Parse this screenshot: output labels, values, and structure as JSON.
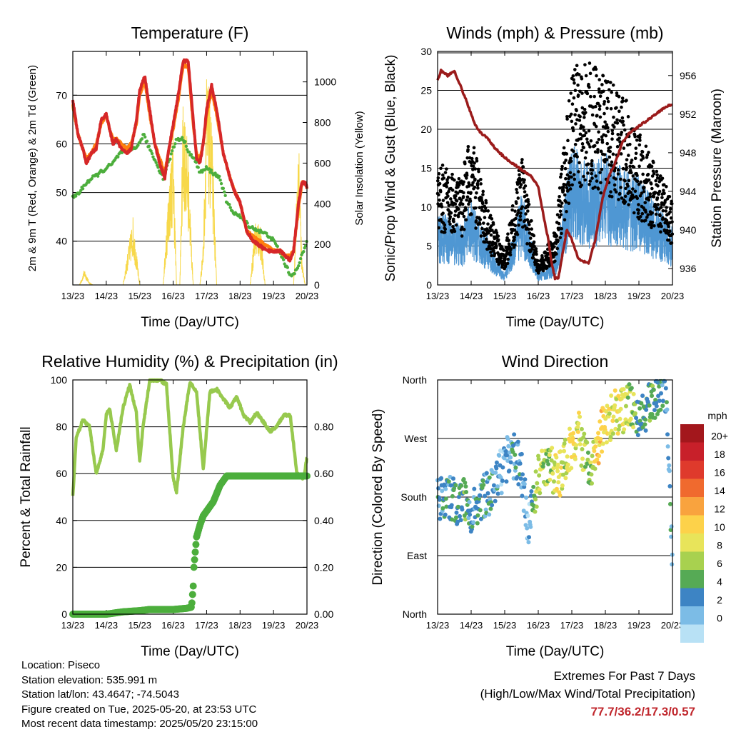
{
  "meta": {
    "location": "Location: Piseco",
    "elevation": "Station elevation: 535.991 m",
    "latlon": "Station lat/lon: 43.4647; -74.5043",
    "created": "Figure created on Tue, 2025-05-20, at 23:53 UTC",
    "recent": "Most recent data timestamp: 2025/05/20 23:15:00"
  },
  "extremes": {
    "line1": "Extremes For Past 7 Days",
    "line2": "(High/Low/Max Wind/Total Precipitation)",
    "values": "77.7/36.2/17.3/0.57"
  },
  "colors": {
    "temp_red": "#d62728",
    "temp_orange": "#ff7f0e",
    "dewpoint_green": "#4cae3c",
    "solar_yellow": "#f7d84a",
    "gust_black": "#000000",
    "wind_blue": "#4f97d3",
    "pressure_maroon": "#9b1b1b",
    "rh_lightgreen": "#97c94e",
    "precip_green": "#4cae3c"
  },
  "chart_data": [
    {
      "type": "line",
      "title": "Temperature (F)",
      "xlabel": "Time (Day/UTC)",
      "ylabel": "2m & 9m T (Red, Orange) & 2m Td (Green)",
      "y2label": "Solar Insolation (Yellow)",
      "x_ticks": [
        "13/23",
        "14/23",
        "15/23",
        "16/23",
        "17/23",
        "18/23",
        "19/23",
        "20/23"
      ],
      "x_unit": "days since 13/23",
      "xlim": [
        0,
        7
      ],
      "ylim": [
        31,
        79
      ],
      "y_ticks": [
        40,
        50,
        60,
        70
      ],
      "y2lim": [
        0,
        1150
      ],
      "y2_ticks": [
        0,
        200,
        400,
        600,
        800,
        1000
      ],
      "grid": true,
      "series": [
        {
          "name": "2m T",
          "color": "#d62728",
          "x": [
            0,
            0.15,
            0.3,
            0.4,
            0.55,
            0.7,
            0.85,
            1.0,
            1.1,
            1.2,
            1.3,
            1.45,
            1.6,
            1.75,
            1.9,
            2.0,
            2.15,
            2.3,
            2.45,
            2.6,
            2.75,
            2.85,
            3.0,
            3.15,
            3.3,
            3.45,
            3.6,
            3.7,
            3.8,
            3.9,
            4.0,
            4.15,
            4.3,
            4.5,
            4.7,
            4.85,
            5.0,
            5.2,
            5.4,
            5.6,
            5.8,
            6.0,
            6.2,
            6.35,
            6.5,
            6.6,
            6.75,
            6.85,
            6.95,
            7.0
          ],
          "values": [
            69,
            62,
            59,
            56,
            58,
            59,
            65,
            66,
            63,
            60,
            61,
            59,
            58,
            59,
            65,
            71,
            74,
            67,
            60,
            56,
            53,
            58,
            64,
            70,
            77,
            77,
            65,
            57,
            56,
            60,
            67,
            72,
            67,
            58,
            53,
            50,
            48,
            42,
            40,
            39,
            38,
            38,
            38,
            37,
            36,
            38,
            48,
            52,
            52,
            51
          ]
        },
        {
          "name": "9m T",
          "color": "#ff7f0e",
          "x": [
            0,
            0.15,
            0.3,
            0.4,
            0.55,
            0.7,
            0.85,
            1.0,
            1.1,
            1.2,
            1.3,
            1.45,
            1.6,
            1.75,
            1.9,
            2.0,
            2.15,
            2.3,
            2.45,
            2.6,
            2.75,
            2.85,
            3.0,
            3.15,
            3.3,
            3.45,
            3.6,
            3.7,
            3.8,
            3.9,
            4.0,
            4.15,
            4.3,
            4.5,
            4.7,
            4.85,
            5.0,
            5.2,
            5.4,
            5.6,
            5.8,
            6.0,
            6.2,
            6.35,
            6.5,
            6.6,
            6.75,
            6.85,
            6.95,
            7.0
          ],
          "values": [
            68,
            62,
            59,
            57,
            58,
            60,
            64,
            66,
            63,
            61,
            61,
            60,
            59,
            60,
            64,
            70,
            73,
            66,
            60,
            57,
            54,
            58,
            63,
            69,
            76,
            76,
            64,
            58,
            57,
            60,
            66,
            71,
            66,
            58,
            53,
            50,
            48,
            42,
            41,
            40,
            39,
            38,
            38,
            37,
            37,
            38,
            47,
            52,
            52,
            51
          ]
        },
        {
          "name": "2m Td",
          "color": "#4cae3c",
          "x": [
            0,
            0.2,
            0.4,
            0.6,
            0.8,
            1.0,
            1.2,
            1.4,
            1.6,
            1.8,
            2.0,
            2.1,
            2.3,
            2.5,
            2.7,
            2.9,
            3.1,
            3.3,
            3.5,
            3.7,
            3.8,
            4.0,
            4.2,
            4.4,
            4.6,
            4.8,
            5.0,
            5.3,
            5.6,
            5.9,
            6.1,
            6.3,
            6.5,
            6.7,
            6.9,
            7.0
          ],
          "values": [
            49,
            50,
            52,
            53,
            54,
            55,
            56,
            58,
            59,
            59,
            60,
            62,
            59,
            56,
            53,
            57,
            61,
            61,
            58,
            56,
            54,
            55,
            54,
            53,
            48,
            46,
            45,
            43,
            42,
            41,
            39,
            36,
            33,
            34,
            38,
            40
          ]
        },
        {
          "name": "Solar",
          "axis": "y2",
          "color": "#f7d84a",
          "x": [
            0.2,
            0.35,
            0.5,
            0.6,
            0.75,
            0.9,
            1.0,
            1.2,
            1.35,
            1.5,
            1.65,
            1.8,
            2.0,
            2.2,
            2.35,
            2.5,
            2.7,
            2.85,
            3.0,
            3.1,
            3.2,
            3.3,
            3.45,
            3.6,
            3.7,
            3.8,
            3.9,
            4.0,
            4.15,
            4.3,
            4.45,
            4.6,
            4.9,
            5.1,
            5.3,
            5.45,
            5.6,
            5.75,
            5.9,
            6.1,
            6.3,
            6.45,
            6.6,
            6.75,
            6.85,
            6.95
          ],
          "values": [
            0,
            80,
            10,
            0,
            0,
            0,
            0,
            0,
            0,
            0,
            180,
            340,
            0,
            0,
            0,
            0,
            0,
            450,
            760,
            0,
            0,
            970,
            650,
            0,
            0,
            0,
            220,
            1050,
            840,
            0,
            0,
            0,
            0,
            0,
            0,
            320,
            320,
            0,
            0,
            0,
            0,
            0,
            0,
            800,
            120,
            0
          ]
        }
      ]
    },
    {
      "type": "scatter",
      "title": "Winds (mph) & Pressure (mb)",
      "xlabel": "Time (Day/UTC)",
      "ylabel": "Sonic/Prop Wind & Gust (Blue, Black)",
      "y2label": "Station Pressure (Maroon)",
      "x_ticks": [
        "13/23",
        "14/23",
        "15/23",
        "16/23",
        "17/23",
        "18/23",
        "19/23",
        "20/23"
      ],
      "xlim": [
        0,
        7
      ],
      "ylim": [
        0,
        30
      ],
      "y_ticks": [
        0,
        5,
        10,
        15,
        20,
        25,
        30
      ],
      "y2lim": [
        934.3,
        958.5
      ],
      "y2_ticks": [
        936,
        940,
        944,
        948,
        952,
        956
      ],
      "grid": true,
      "series": [
        {
          "name": "Gust",
          "color": "#000000",
          "x": [
            0.2,
            0.7,
            1.0,
            1.5,
            2.0,
            2.5,
            3.0,
            3.5,
            4.0,
            4.5,
            5.0,
            5.5,
            6.0,
            6.5,
            7.0
          ],
          "values": [
            11,
            10,
            14,
            7,
            3,
            12,
            2,
            5,
            20,
            21,
            19,
            18,
            14,
            11,
            8
          ]
        },
        {
          "name": "Wind",
          "color": "#4f97d3",
          "x": [
            0.2,
            0.7,
            1.0,
            1.5,
            2.0,
            2.5,
            3.0,
            3.5,
            4.0,
            4.5,
            5.0,
            5.5,
            6.0,
            6.5,
            7.0
          ],
          "values": [
            6,
            5,
            7,
            4,
            1,
            8,
            1,
            2,
            12,
            10,
            11,
            10,
            9,
            7,
            5
          ]
        },
        {
          "name": "Pressure",
          "axis": "y2",
          "color": "#9b1b1b",
          "x": [
            0,
            0.1,
            0.3,
            0.5,
            0.9,
            1.1,
            1.3,
            1.5,
            1.7,
            2.0,
            2.2,
            2.4,
            2.6,
            2.8,
            3.0,
            3.1,
            3.3,
            3.4,
            3.5,
            3.6,
            3.75,
            3.85,
            4.0,
            4.2,
            4.5,
            4.7,
            4.9,
            5.1,
            5.3,
            5.5,
            5.7,
            5.9,
            6.1,
            6.3,
            6.5,
            6.7,
            6.8,
            7.0
          ],
          "values": [
            955.5,
            956.5,
            956,
            956.5,
            953,
            951,
            950,
            949.5,
            948.5,
            947.5,
            947,
            946.5,
            946,
            945.5,
            944.5,
            942.5,
            939,
            936.5,
            935,
            935,
            938,
            940,
            939,
            937,
            936.5,
            939,
            943,
            945.5,
            947,
            949,
            950,
            950.5,
            951,
            951.5,
            952,
            952.5,
            952.8,
            953
          ]
        }
      ]
    },
    {
      "type": "line",
      "title": "Relative Humidity (%) & Precipitation (in)",
      "xlabel": "Time (Day/UTC)",
      "ylabel": "Percent & Total Rainfall",
      "x_ticks": [
        "13/23",
        "14/23",
        "15/23",
        "16/23",
        "17/23",
        "18/23",
        "19/23",
        "20/23"
      ],
      "xlim": [
        0,
        7
      ],
      "ylim": [
        0,
        100
      ],
      "y_ticks": [
        0,
        20,
        40,
        60,
        80,
        100
      ],
      "y2lim": [
        0,
        1.0
      ],
      "y2_ticks": [
        "0.00",
        "0.20",
        "0.40",
        "0.60",
        "0.80"
      ],
      "grid": true,
      "series": [
        {
          "name": "RH",
          "color": "#97c94e",
          "x": [
            0,
            0.1,
            0.3,
            0.5,
            0.7,
            0.9,
            1.0,
            1.1,
            1.3,
            1.5,
            1.7,
            1.9,
            2.0,
            2.1,
            2.3,
            2.5,
            2.6,
            2.8,
            3.0,
            3.1,
            3.3,
            3.5,
            3.7,
            3.9,
            4.1,
            4.3,
            4.5,
            4.7,
            4.9,
            5.1,
            5.3,
            5.5,
            5.7,
            5.9,
            6.1,
            6.3,
            6.5,
            6.7,
            6.9,
            7.0
          ],
          "values": [
            50,
            75,
            83,
            80,
            60,
            70,
            85,
            88,
            70,
            88,
            98,
            86,
            65,
            80,
            100,
            100,
            100,
            98,
            58,
            52,
            80,
            99,
            95,
            62,
            95,
            96,
            92,
            88,
            93,
            85,
            82,
            86,
            82,
            78,
            80,
            85,
            85,
            60,
            58,
            67
          ]
        },
        {
          "name": "Precip",
          "axis": "y2",
          "color": "#4cae3c",
          "x": [
            0,
            1.0,
            1.5,
            2.0,
            2.3,
            2.6,
            3.0,
            3.4,
            3.55,
            3.6,
            3.62,
            3.7,
            3.8,
            3.9,
            4.0,
            4.2,
            4.4,
            4.6,
            5.0,
            5.5,
            6.0,
            6.5,
            7.0
          ],
          "values": [
            0,
            0,
            0.01,
            0.015,
            0.02,
            0.02,
            0.02,
            0.025,
            0.03,
            0.12,
            0.2,
            0.33,
            0.38,
            0.42,
            0.44,
            0.48,
            0.55,
            0.59,
            0.59,
            0.59,
            0.59,
            0.59,
            0.59
          ]
        }
      ]
    },
    {
      "type": "scatter",
      "title": "Wind Direction",
      "xlabel": "Time (Day/UTC)",
      "ylabel": "Direction (Colored By Speed)",
      "x_ticks": [
        "13/23",
        "14/23",
        "15/23",
        "16/23",
        "17/23",
        "18/23",
        "19/23",
        "20/23"
      ],
      "xlim": [
        0,
        7
      ],
      "y_ticks": [
        "North",
        "East",
        "South",
        "West",
        "North"
      ],
      "ylim": [
        0,
        360
      ],
      "grid": true,
      "colorbar": {
        "unit": "mph",
        "labels": [
          "20+",
          "18",
          "16",
          "14",
          "12",
          "10",
          "8",
          "6",
          "4",
          "2",
          "0"
        ],
        "colors": [
          "#a3171c",
          "#c8202a",
          "#df3a2c",
          "#f06a2e",
          "#f9a33e",
          "#fdd24a",
          "#e8e45a",
          "#a8d14f",
          "#56aa55",
          "#3d84c4",
          "#7cbce6",
          "#b8e1f5"
        ]
      },
      "series": [
        {
          "name": "Direction",
          "x": [
            0.1,
            0.3,
            0.6,
            0.8,
            1.0,
            1.2,
            1.5,
            1.8,
            2.0,
            2.2,
            2.5,
            2.7,
            3.0,
            3.3,
            3.6,
            3.8,
            4.0,
            4.2,
            4.5,
            4.8,
            5.0,
            5.3,
            5.6,
            5.8,
            6.0,
            6.3,
            6.6,
            6.8,
            7.0
          ],
          "values": [
            175,
            180,
            170,
            175,
            160,
            170,
            185,
            210,
            230,
            250,
            220,
            130,
            210,
            230,
            210,
            240,
            260,
            280,
            220,
            265,
            295,
            310,
            315,
            325,
            300,
            320,
            345,
            340,
            80
          ],
          "speed": [
            4,
            4,
            5,
            6,
            3,
            4,
            4,
            3,
            2,
            4,
            3,
            2,
            9,
            7,
            11,
            8,
            12,
            10,
            7,
            12,
            11,
            10,
            9,
            8,
            5,
            6,
            5,
            4,
            3
          ]
        }
      ]
    }
  ]
}
